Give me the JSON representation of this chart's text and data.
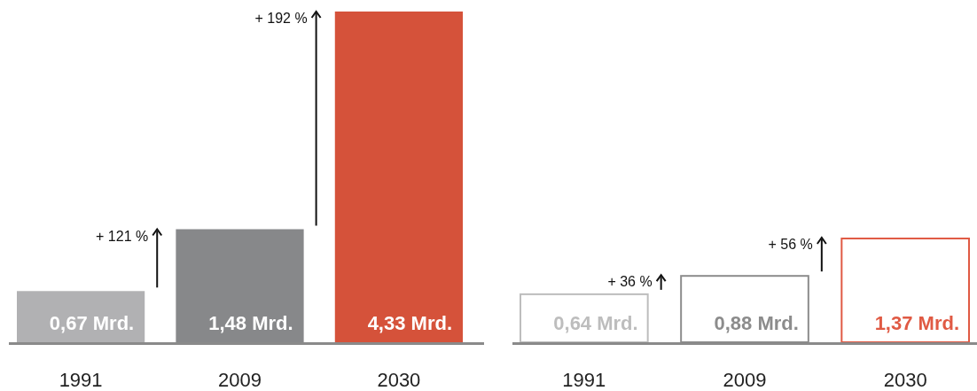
{
  "chart_data": [
    {
      "type": "bar",
      "categories": [
        "1991",
        "2009",
        "2030"
      ],
      "values": [
        0.67,
        1.48,
        4.33
      ],
      "colors": [
        "#b1b1b3",
        "#87888a",
        "#d5523a"
      ],
      "value_labels": [
        "0,67 Mrd.",
        "1,48 Mrd.",
        "4,33 Mrd."
      ],
      "annotations": [
        "+ 121 %",
        "+ 192 %"
      ]
    },
    {
      "type": "bar",
      "categories": [
        "1991",
        "2009",
        "2030"
      ],
      "values": [
        0.64,
        0.88,
        1.37
      ],
      "colors": [
        "#bdbdbd",
        "#8c8c8c",
        "#e05a44"
      ],
      "value_labels": [
        "0,64 Mrd.",
        "0,88 Mrd.",
        "1,37 Mrd."
      ],
      "annotations": [
        "+ 36 %",
        "+ 56 %"
      ]
    }
  ]
}
